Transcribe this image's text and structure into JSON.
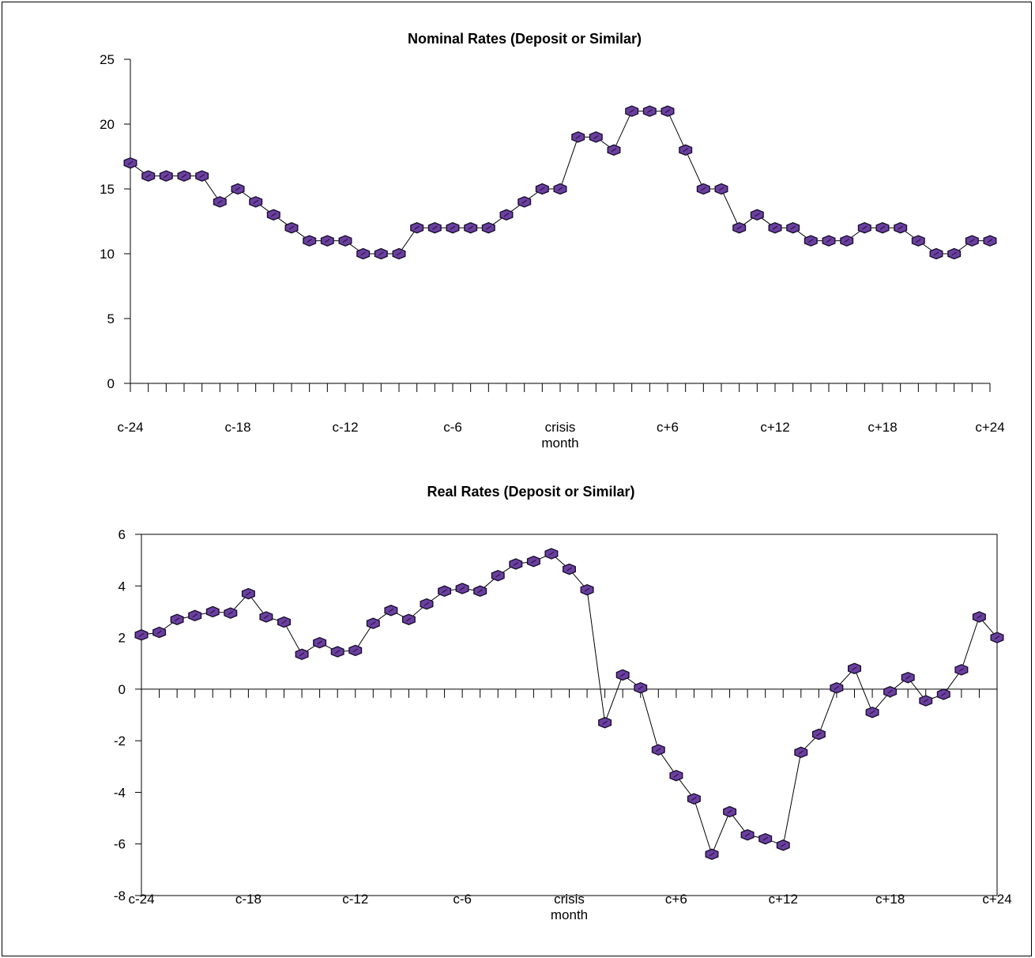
{
  "chart_data": [
    {
      "type": "line",
      "title": "Nominal Rates (Deposit or Similar)",
      "xlabel": "",
      "ylabel": "",
      "x_tick_labels": [
        "c-24",
        "c-18",
        "c-12",
        "c-6",
        "crisis\nmonth",
        "c+6",
        "c+12",
        "c+18",
        "c+24"
      ],
      "x": [
        -24,
        -23,
        -22,
        -21,
        -20,
        -19,
        -18,
        -17,
        -16,
        -15,
        -14,
        -13,
        -12,
        -11,
        -10,
        -9,
        -8,
        -7,
        -6,
        -5,
        -4,
        -3,
        -2,
        -1,
        0,
        1,
        2,
        3,
        4,
        5,
        6,
        7,
        8,
        9,
        10,
        11,
        12,
        13,
        14,
        15,
        16,
        17,
        18,
        19,
        20,
        21,
        22,
        23,
        24
      ],
      "series": [
        {
          "values": [
            17,
            16,
            16,
            16,
            16,
            14,
            15,
            14,
            13,
            12,
            11,
            11,
            11,
            10,
            10,
            10,
            12,
            12,
            12,
            12,
            12,
            13,
            14,
            15,
            15,
            19,
            19,
            18,
            21,
            21,
            21,
            18,
            15,
            15,
            12,
            13,
            12,
            12,
            11,
            11,
            11,
            12,
            12,
            12,
            11,
            10,
            10,
            11,
            11
          ]
        }
      ],
      "ylim": [
        0,
        25
      ],
      "yticks": [
        0,
        5,
        10,
        15,
        20,
        25
      ],
      "grid": false,
      "legend": "none",
      "colors": {
        "marker_fill": "#6b3fa0",
        "marker_stroke": "#1a1030",
        "line": "#000000"
      }
    },
    {
      "type": "line",
      "title": "Real Rates (Deposit or Similar)",
      "xlabel": "",
      "ylabel": "",
      "x_tick_labels": [
        "c-24",
        "c-18",
        "c-12",
        "c-6",
        "crisis\nmonth",
        "c+6",
        "c+12",
        "c+18",
        "c+24"
      ],
      "x": [
        -24,
        -23,
        -22,
        -21,
        -20,
        -19,
        -18,
        -17,
        -16,
        -15,
        -14,
        -13,
        -12,
        -11,
        -10,
        -9,
        -8,
        -7,
        -6,
        -5,
        -4,
        -3,
        -2,
        -1,
        0,
        1,
        2,
        3,
        4,
        5,
        6,
        7,
        8,
        9,
        10,
        11,
        12,
        13,
        14,
        15,
        16,
        17,
        18,
        19,
        20,
        21,
        22,
        23,
        24
      ],
      "series": [
        {
          "values": [
            2.1,
            2.2,
            2.7,
            2.85,
            3,
            2.95,
            3.7,
            2.8,
            2.6,
            1.35,
            1.8,
            1.45,
            1.5,
            2.55,
            3.05,
            2.7,
            3.3,
            3.8,
            3.9,
            3.8,
            4.4,
            4.85,
            4.95,
            5.25,
            4.65,
            3.85,
            -1.3,
            0.55,
            0.05,
            -2.35,
            -3.35,
            -4.25,
            -6.4,
            -4.75,
            -5.65,
            -5.8,
            -6.05,
            -2.45,
            -1.75,
            0.05,
            0.8,
            -0.9,
            -0.1,
            0.45,
            -0.45,
            -0.2,
            0.75,
            2.8,
            2
          ]
        }
      ],
      "ylim": [
        -8,
        6
      ],
      "yticks": [
        -8,
        -6,
        -4,
        -2,
        0,
        2,
        4,
        6
      ],
      "grid": false,
      "legend": "none",
      "colors": {
        "marker_fill": "#6b3fa0",
        "marker_stroke": "#1a1030",
        "line": "#000000"
      }
    }
  ]
}
